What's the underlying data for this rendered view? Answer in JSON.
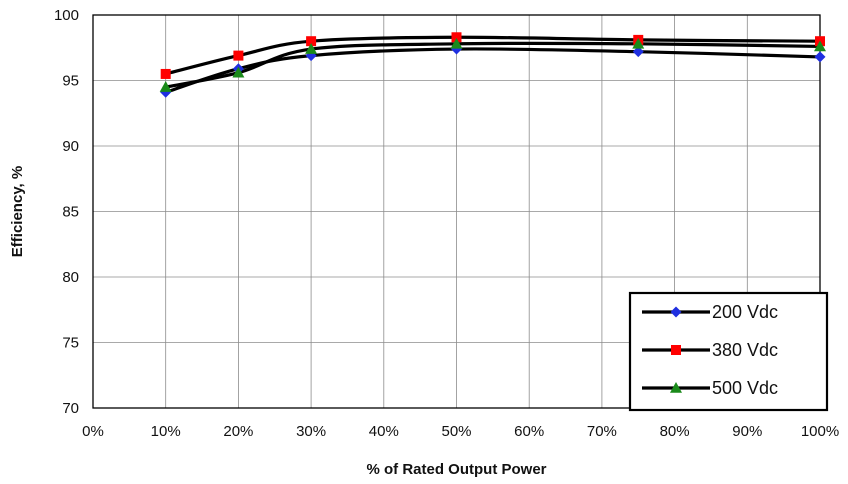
{
  "chart_data": {
    "type": "line",
    "xlabel": "% of Rated Output Power",
    "ylabel": "Efficiency, %",
    "x": [
      0.1,
      0.2,
      0.3,
      0.5,
      0.75,
      1.0
    ],
    "xlim": [
      0,
      1.0
    ],
    "ylim": [
      70,
      100
    ],
    "x_ticks": [
      "0%",
      "10%",
      "20%",
      "30%",
      "40%",
      "50%",
      "60%",
      "70%",
      "80%",
      "90%",
      "100%"
    ],
    "y_ticks": [
      "70",
      "75",
      "80",
      "85",
      "90",
      "95",
      "100"
    ],
    "grid": true,
    "legend_position": "bottom-right",
    "line_color": "#000000",
    "series": [
      {
        "name": "200 Vdc",
        "marker": "diamond",
        "marker_color": "#1f2fe0",
        "values": [
          94.1,
          95.9,
          96.9,
          97.4,
          97.2,
          96.8
        ]
      },
      {
        "name": "380 Vdc",
        "marker": "square",
        "marker_color": "#ff0000",
        "values": [
          95.5,
          96.9,
          98.0,
          98.3,
          98.1,
          98.0
        ]
      },
      {
        "name": "500 Vdc",
        "marker": "triangle",
        "marker_color": "#1a8a1a",
        "values": [
          94.5,
          95.6,
          97.4,
          97.8,
          97.8,
          97.6
        ]
      }
    ]
  }
}
